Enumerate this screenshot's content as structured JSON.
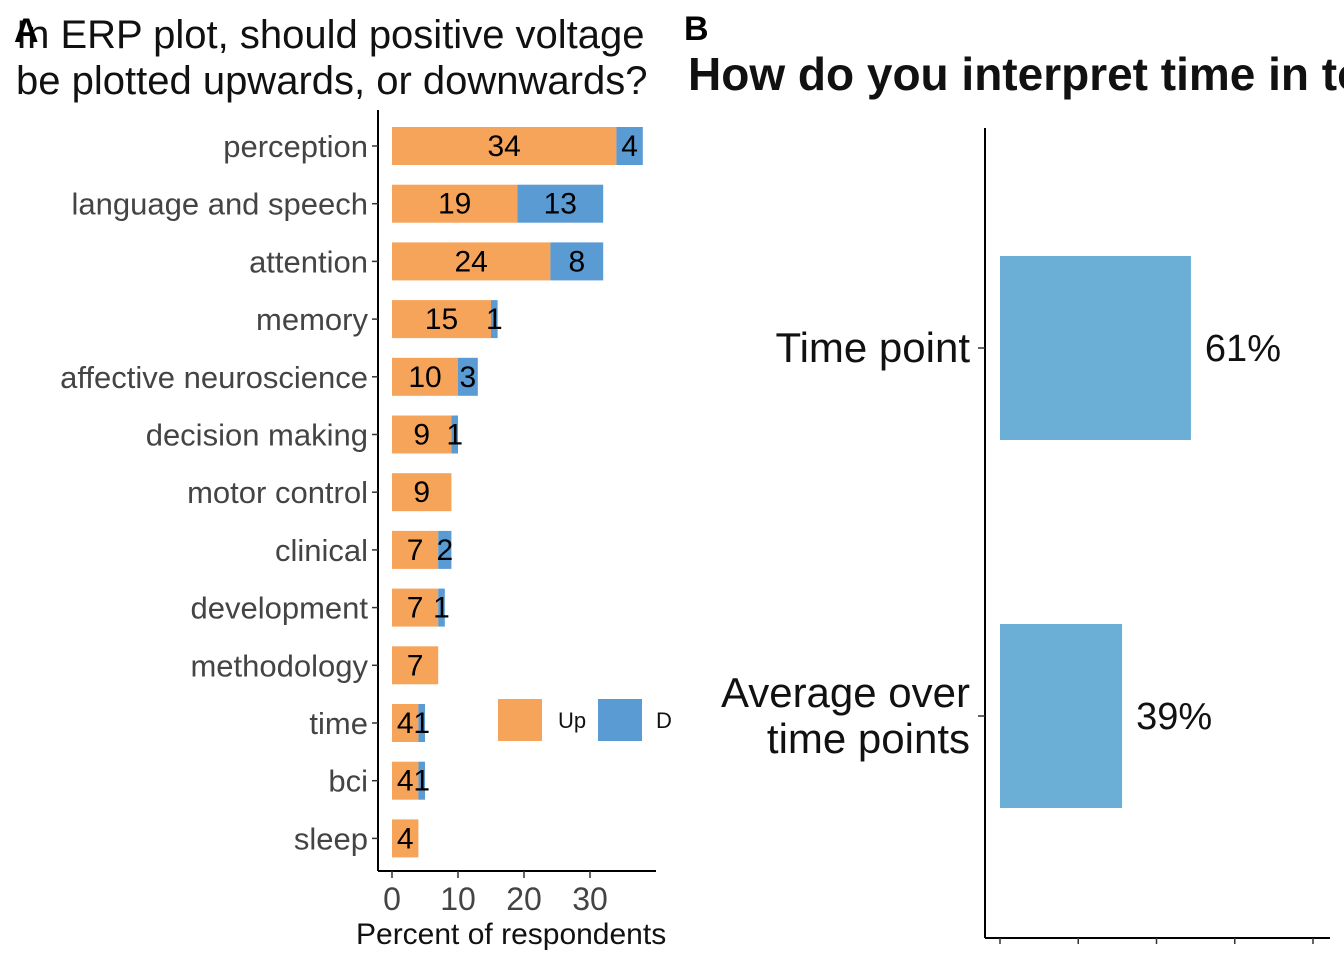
{
  "panels": {
    "a_tag": "A",
    "b_tag": "B"
  },
  "chart_data": [
    {
      "type": "bar",
      "orientation": "horizontal",
      "stacked": true,
      "title_lines": [
        "In ERP plot, should positive voltage",
        "be plotted upwards, or downwards?"
      ],
      "xlabel": "Percent of respondents",
      "ylabel": "",
      "xlim": [
        0,
        40
      ],
      "xticks": [
        0,
        10,
        20,
        30
      ],
      "categories": [
        "perception",
        "language and speech",
        "attention",
        "memory",
        "affective neuroscience",
        "decision making",
        "motor control",
        "clinical",
        "development",
        "methodology",
        "time",
        "bci",
        "sleep"
      ],
      "series": [
        {
          "name": "Up",
          "color": "#F7A45B",
          "values": [
            34,
            19,
            24,
            15,
            10,
            9,
            9,
            7,
            7,
            7,
            4,
            4,
            4
          ]
        },
        {
          "name": "Down",
          "color": "#5A9BD4",
          "values": [
            4,
            13,
            8,
            1,
            3,
            1,
            0,
            2,
            1,
            0,
            1,
            1,
            0
          ]
        }
      ],
      "legend": {
        "position": "inside-bottom-right",
        "entries": [
          "Up",
          "Down"
        ]
      },
      "grid": false
    },
    {
      "type": "bar",
      "orientation": "horizontal",
      "title": "How do you interpret time in topoplots?",
      "categories": [
        "Time point",
        "Average over time points"
      ],
      "category_lines": [
        [
          "Time point"
        ],
        [
          "Average over",
          "time points"
        ]
      ],
      "values": [
        61,
        39
      ],
      "value_labels": [
        "61%",
        "39%"
      ],
      "color": "#6BAED6",
      "xlim": [
        0,
        100
      ],
      "grid": false
    }
  ]
}
